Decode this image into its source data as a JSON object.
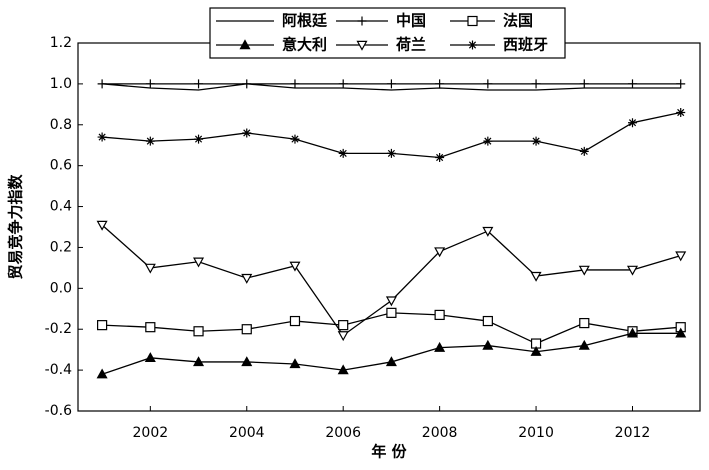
{
  "chart_data": {
    "type": "line",
    "x_label": "年 份",
    "y_label": "贸易竞争力指数",
    "x": [
      2001,
      2002,
      2003,
      2004,
      2005,
      2006,
      2007,
      2008,
      2009,
      2010,
      2011,
      2012,
      2013
    ],
    "xlim": [
      2000.5,
      2013.4
    ],
    "xticks": [
      2002,
      2004,
      2006,
      2008,
      2010,
      2012
    ],
    "ylim": [
      -0.6,
      1.2
    ],
    "yticks": [
      -0.6,
      -0.4,
      -0.2,
      {
        "value": 0,
        "label": "0.0"
      },
      0.2,
      0.4,
      0.6,
      0.8,
      {
        "value": 1,
        "label": "1.0"
      },
      1.2
    ],
    "legend": "top",
    "series": [
      {
        "name": "阿根廷",
        "color": "#000000",
        "marker": "none",
        "values": [
          1.0,
          0.98,
          0.97,
          1.0,
          0.98,
          0.98,
          0.97,
          0.98,
          0.97,
          0.97,
          0.98,
          0.98,
          0.98
        ]
      },
      {
        "name": "中国",
        "color": "#000000",
        "marker": "plus",
        "values": [
          1.0,
          1.0,
          1.0,
          1.0,
          1.0,
          1.0,
          1.0,
          1.0,
          1.0,
          1.0,
          1.0,
          1.0,
          1.0
        ]
      },
      {
        "name": "法国",
        "color": "#000000",
        "marker": "square",
        "values": [
          -0.18,
          -0.19,
          -0.21,
          -0.2,
          -0.16,
          -0.18,
          -0.12,
          -0.13,
          -0.16,
          -0.27,
          -0.17,
          -0.21,
          -0.19
        ]
      },
      {
        "name": "意大利",
        "color": "#000000",
        "marker": "triangle",
        "values": [
          -0.42,
          -0.34,
          -0.36,
          -0.36,
          -0.37,
          -0.4,
          -0.36,
          -0.29,
          -0.28,
          -0.31,
          -0.28,
          -0.22,
          -0.22
        ]
      },
      {
        "name": "荷兰",
        "color": "#000000",
        "marker": "triangle-down",
        "values": [
          0.31,
          0.1,
          0.13,
          0.05,
          0.11,
          -0.23,
          -0.06,
          0.18,
          0.28,
          0.06,
          0.09,
          0.09,
          0.16
        ]
      },
      {
        "name": "西班牙",
        "color": "#000000",
        "marker": "star",
        "values": [
          0.74,
          0.72,
          0.73,
          0.76,
          0.73,
          0.66,
          0.66,
          0.64,
          0.72,
          0.72,
          0.67,
          0.81,
          0.86
        ]
      }
    ]
  }
}
